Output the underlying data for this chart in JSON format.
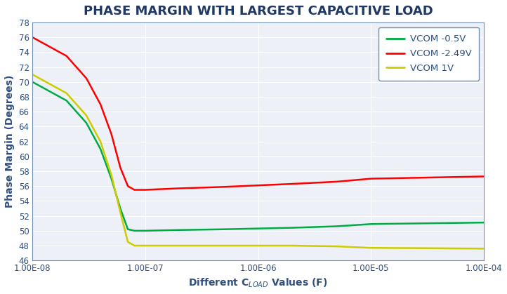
{
  "title": "PHASE MARGIN WITH LARGEST CAPACITIVE LOAD",
  "ylabel": "Phase Margin (Degrees)",
  "xlabel": "Different C$_{LOAD}$ Values (F)",
  "xlim": [
    1e-08,
    0.0001
  ],
  "ylim": [
    46,
    78
  ],
  "yticks": [
    46,
    48,
    50,
    52,
    54,
    56,
    58,
    60,
    62,
    64,
    66,
    68,
    70,
    72,
    74,
    76,
    78
  ],
  "xtick_values": [
    1e-08,
    1e-07,
    1e-06,
    1e-05,
    0.0001
  ],
  "xtick_labels": [
    "1.00E-08",
    "1.00E-07",
    "1.00E-06",
    "1.00E-05",
    "1.00E-04"
  ],
  "series": [
    {
      "label": "VCOM -0.5V",
      "color": "#00AA44",
      "x": [
        1e-08,
        2e-08,
        3e-08,
        4e-08,
        5e-08,
        6e-08,
        7e-08,
        8e-08,
        1e-07,
        2e-07,
        5e-07,
        1e-06,
        2e-06,
        5e-06,
        1e-05,
        0.0001
      ],
      "y": [
        70.0,
        67.5,
        64.5,
        61.0,
        57.0,
        53.0,
        50.2,
        50.0,
        50.0,
        50.1,
        50.2,
        50.3,
        50.4,
        50.6,
        50.9,
        51.1
      ]
    },
    {
      "label": "VCOM -2.49V",
      "color": "#FF0000",
      "x": [
        1e-08,
        2e-08,
        3e-08,
        4e-08,
        5e-08,
        6e-08,
        7e-08,
        8e-08,
        1e-07,
        2e-07,
        5e-07,
        1e-06,
        2e-06,
        5e-06,
        1e-05,
        0.0001
      ],
      "y": [
        76.0,
        73.5,
        70.5,
        67.0,
        63.0,
        58.5,
        56.0,
        55.5,
        55.5,
        55.7,
        55.9,
        56.1,
        56.3,
        56.6,
        57.0,
        57.3
      ]
    },
    {
      "label": "VCOM 1V",
      "color": "#CCCC00",
      "x": [
        1e-08,
        2e-08,
        3e-08,
        4e-08,
        5e-08,
        6e-08,
        7e-08,
        8e-08,
        1e-07,
        2e-07,
        5e-07,
        1e-06,
        2e-06,
        5e-06,
        1e-05,
        0.0001
      ],
      "y": [
        71.0,
        68.5,
        65.5,
        62.0,
        57.5,
        52.5,
        48.5,
        48.0,
        48.0,
        48.0,
        48.0,
        48.0,
        48.0,
        47.9,
        47.7,
        47.6
      ]
    }
  ],
  "background_color": "#FFFFFF",
  "plot_bg_color": "#EEF0F8",
  "grid_color": "#FFFFFF",
  "title_color": "#1F3864",
  "legend_label_color": "#2F4F7F",
  "axis_label_color": "#2F4F7F",
  "tick_color": "#2F4F7F",
  "spine_color": "#7090B0",
  "title_fontsize": 13,
  "label_fontsize": 10,
  "tick_fontsize": 8.5,
  "legend_fontsize": 9.5,
  "line_width": 1.8
}
